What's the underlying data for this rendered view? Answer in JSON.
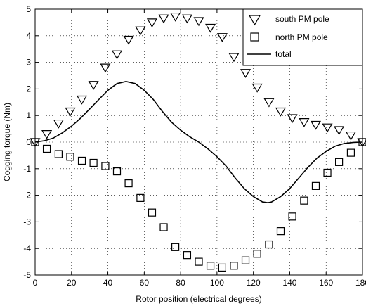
{
  "chart_data": {
    "type": "scatter",
    "xlabel": "Rotor position (electrical degrees)",
    "ylabel": "Cogging torque (Nm)",
    "xlim": [
      0,
      180
    ],
    "ylim": [
      -5,
      5
    ],
    "xticks": [
      "0",
      "20",
      "40",
      "60",
      "80",
      "100",
      "120",
      "140",
      "160",
      "180"
    ],
    "yticks": [
      "-5",
      "-4",
      "-3",
      "-2",
      "-1",
      "0",
      "1",
      "2",
      "3",
      "4",
      "5"
    ],
    "grid": true,
    "legend_position": "top-right",
    "series": [
      {
        "name": "south PM pole",
        "marker": "triangle-down",
        "color": "#000000",
        "points": [
          [
            0,
            0
          ],
          [
            6.4,
            0.3
          ],
          [
            12.9,
            0.7
          ],
          [
            19.3,
            1.15
          ],
          [
            25.7,
            1.6
          ],
          [
            32.1,
            2.15
          ],
          [
            38.6,
            2.8
          ],
          [
            45,
            3.3
          ],
          [
            51.4,
            3.85
          ],
          [
            57.9,
            4.2
          ],
          [
            64.3,
            4.5
          ],
          [
            70.7,
            4.65
          ],
          [
            77.1,
            4.72
          ],
          [
            83.6,
            4.65
          ],
          [
            90,
            4.55
          ],
          [
            96.4,
            4.3
          ],
          [
            102.9,
            3.95
          ],
          [
            109.3,
            3.2
          ],
          [
            115.7,
            2.6
          ],
          [
            122.1,
            2.05
          ],
          [
            128.6,
            1.5
          ],
          [
            135,
            1.15
          ],
          [
            141.4,
            0.9
          ],
          [
            147.9,
            0.75
          ],
          [
            154.3,
            0.65
          ],
          [
            160.7,
            0.55
          ],
          [
            167.1,
            0.45
          ],
          [
            173.6,
            0.25
          ],
          [
            180,
            0
          ]
        ]
      },
      {
        "name": "north PM pole",
        "marker": "square",
        "color": "#000000",
        "points": [
          [
            0,
            0
          ],
          [
            6.4,
            -0.25
          ],
          [
            12.9,
            -0.45
          ],
          [
            19.3,
            -0.55
          ],
          [
            25.7,
            -0.7
          ],
          [
            32.1,
            -0.78
          ],
          [
            38.6,
            -0.9
          ],
          [
            45,
            -1.1
          ],
          [
            51.4,
            -1.55
          ],
          [
            57.9,
            -2.1
          ],
          [
            64.3,
            -2.65
          ],
          [
            70.7,
            -3.2
          ],
          [
            77.1,
            -3.95
          ],
          [
            83.6,
            -4.25
          ],
          [
            90,
            -4.5
          ],
          [
            96.4,
            -4.65
          ],
          [
            102.9,
            -4.72
          ],
          [
            109.3,
            -4.65
          ],
          [
            115.7,
            -4.45
          ],
          [
            122.1,
            -4.2
          ],
          [
            128.6,
            -3.85
          ],
          [
            135,
            -3.35
          ],
          [
            141.4,
            -2.8
          ],
          [
            147.9,
            -2.2
          ],
          [
            154.3,
            -1.65
          ],
          [
            160.7,
            -1.15
          ],
          [
            167.1,
            -0.75
          ],
          [
            173.6,
            -0.4
          ],
          [
            180,
            0
          ]
        ]
      },
      {
        "name": "total",
        "marker": "line",
        "color": "#000000",
        "points": [
          [
            0,
            0
          ],
          [
            5,
            0.05
          ],
          [
            10,
            0.15
          ],
          [
            15,
            0.35
          ],
          [
            20,
            0.6
          ],
          [
            25,
            0.9
          ],
          [
            30,
            1.25
          ],
          [
            35,
            1.6
          ],
          [
            40,
            1.95
          ],
          [
            45,
            2.2
          ],
          [
            50,
            2.28
          ],
          [
            55,
            2.2
          ],
          [
            60,
            1.95
          ],
          [
            65,
            1.6
          ],
          [
            70,
            1.15
          ],
          [
            75,
            0.75
          ],
          [
            80,
            0.45
          ],
          [
            85,
            0.2
          ],
          [
            90,
            0
          ],
          [
            95,
            -0.25
          ],
          [
            100,
            -0.55
          ],
          [
            105,
            -0.9
          ],
          [
            110,
            -1.35
          ],
          [
            115,
            -1.75
          ],
          [
            120,
            -2.05
          ],
          [
            125,
            -2.25
          ],
          [
            128,
            -2.28
          ],
          [
            130,
            -2.25
          ],
          [
            135,
            -2.05
          ],
          [
            140,
            -1.75
          ],
          [
            145,
            -1.35
          ],
          [
            150,
            -0.95
          ],
          [
            155,
            -0.6
          ],
          [
            160,
            -0.35
          ],
          [
            165,
            -0.15
          ],
          [
            170,
            -0.05
          ],
          [
            175,
            -0.01
          ],
          [
            180,
            0
          ]
        ]
      }
    ]
  }
}
